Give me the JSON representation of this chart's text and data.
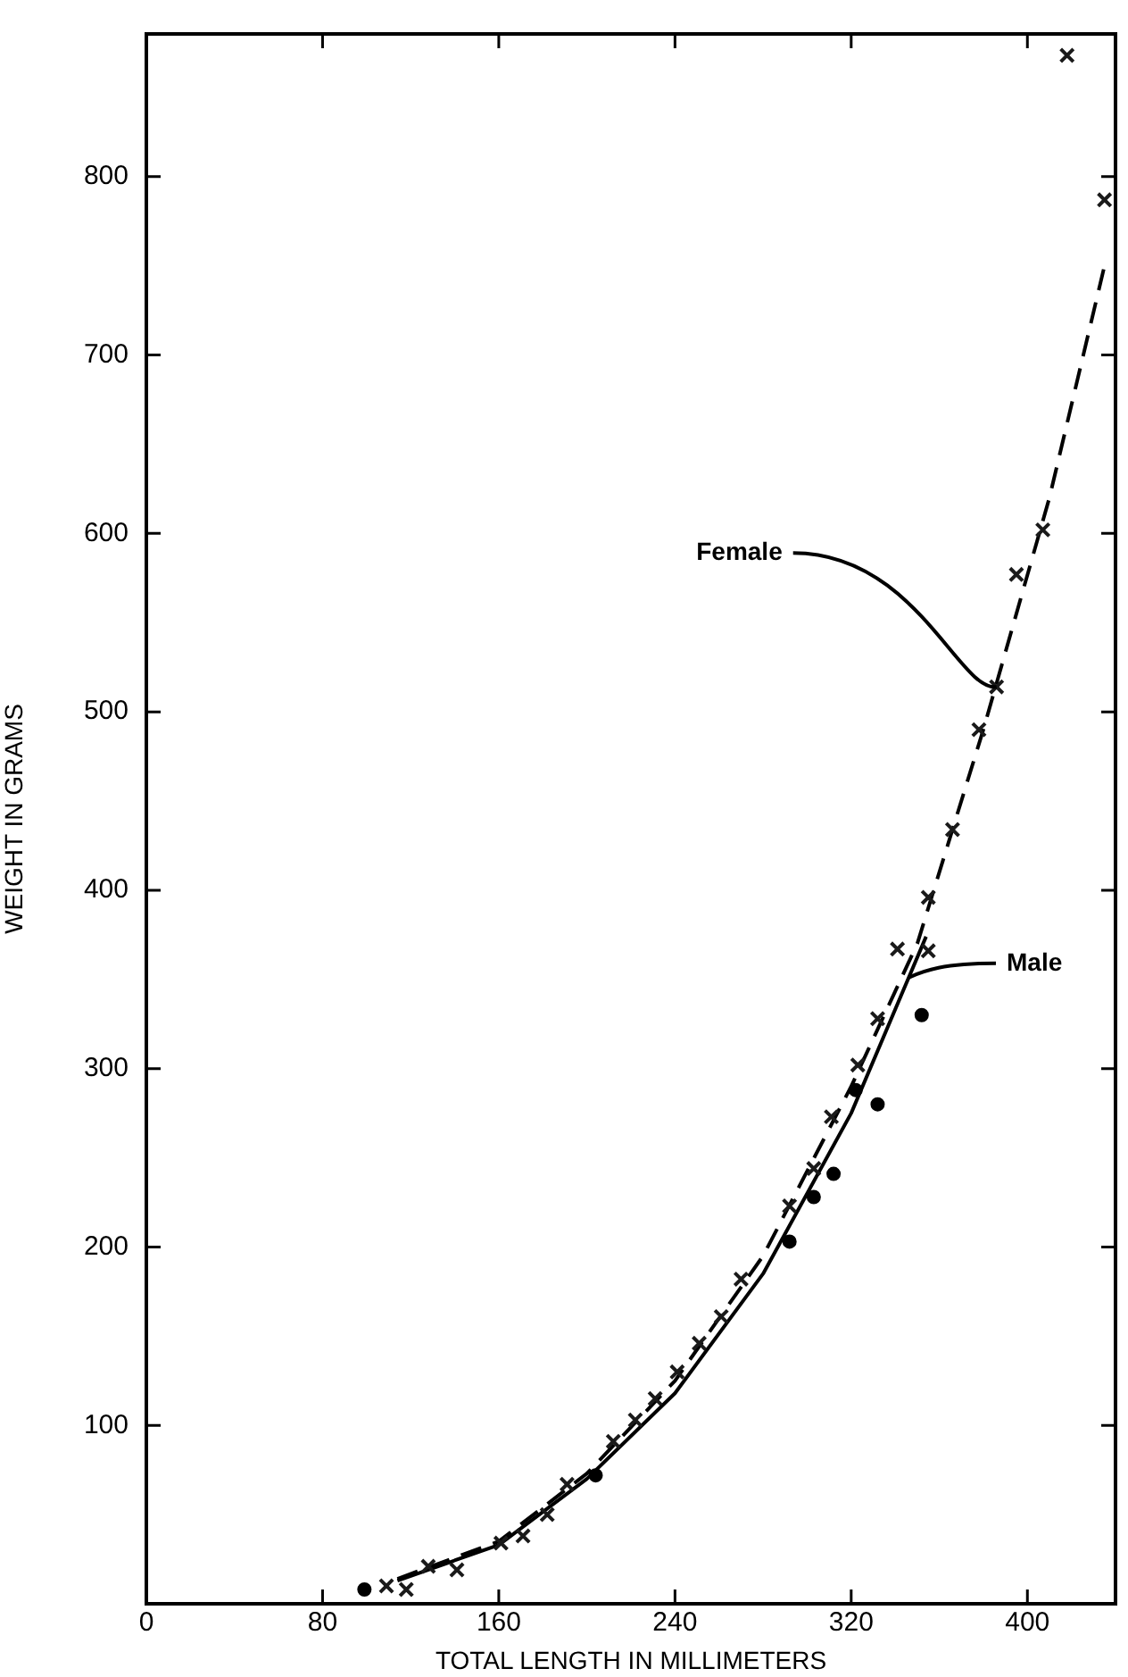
{
  "chart_data": {
    "type": "scatter",
    "xlabel": "TOTAL LENGTH IN MILLIMETERS",
    "ylabel": "WEIGHT IN GRAMS",
    "xlim": [
      0,
      440
    ],
    "xticks": [
      0,
      80,
      160,
      240,
      320,
      400
    ],
    "ylim": [
      0,
      880
    ],
    "yticks": [
      100,
      200,
      300,
      400,
      500,
      600,
      700,
      800
    ],
    "grid": false,
    "legend": false,
    "series": [
      {
        "type": "scatter",
        "marker": "cross",
        "color": "#1a1a1a",
        "x": [
          109,
          118,
          128,
          141,
          161,
          171,
          182,
          191,
          212,
          222,
          231,
          241,
          251,
          261,
          270,
          292,
          303,
          311,
          323,
          332,
          341,
          355,
          355,
          366,
          378,
          386,
          395,
          407,
          418,
          435
        ],
        "values": [
          10,
          8,
          21,
          19,
          34,
          38,
          50,
          67,
          91,
          103,
          115,
          130,
          146,
          161,
          182,
          223,
          244,
          273,
          302,
          328,
          367,
          366,
          396,
          434,
          490,
          514,
          577,
          602,
          868,
          787
        ]
      },
      {
        "type": "scatter",
        "marker": "circle",
        "color": "#000000",
        "x": [
          99,
          204,
          292,
          303,
          312,
          322,
          332,
          352
        ],
        "values": [
          8,
          72,
          203,
          228,
          241,
          288,
          280,
          330
        ]
      },
      {
        "type": "line",
        "marker": "none",
        "line_style": "dashed",
        "color": "#000000",
        "x": [
          114,
          160,
          200,
          240,
          280,
          320,
          350,
          380,
          410,
          435
        ],
        "values": [
          14,
          35,
          73,
          125,
          195,
          290,
          370,
          490,
          620,
          750
        ]
      },
      {
        "type": "line",
        "marker": "none",
        "line_style": "solid",
        "color": "#000000",
        "x": [
          114,
          160,
          200,
          240,
          280,
          320,
          354
        ],
        "values": [
          13,
          33,
          70,
          118,
          185,
          275,
          374
        ]
      }
    ],
    "annotations": [
      {
        "text": "Female",
        "x": 386,
        "y": 514
      },
      {
        "text": "Male",
        "x": 346,
        "y": 351
      }
    ]
  }
}
